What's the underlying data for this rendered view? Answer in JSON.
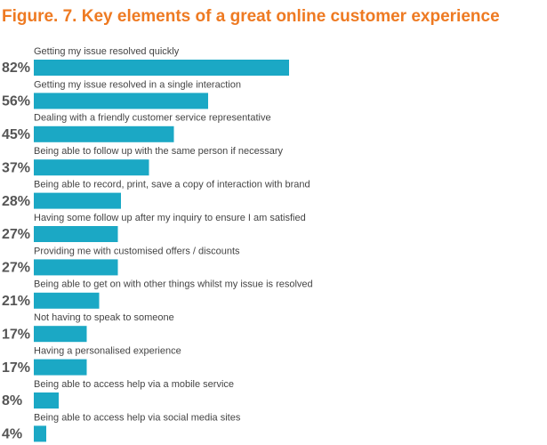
{
  "chart_data": {
    "type": "bar",
    "orientation": "horizontal",
    "title": "Figure. 7. Key elements of a great online customer experience",
    "categories": [
      "Getting my issue resolved quickly",
      "Getting my issue resolved in a single interaction",
      "Dealing with a friendly customer service representative",
      "Being able to follow up with the same person if necessary",
      "Being able to record, print, save a copy of interaction with brand",
      "Having some follow up after my inquiry to ensure I am satisfied",
      "Providing me with customised offers / discounts",
      "Being able to get on with other things whilst my issue is resolved",
      "Not having to speak to someone",
      "Having a personalised experience",
      "Being able to access help via a mobile service",
      "Being able to access help via social media sites"
    ],
    "values": [
      82,
      56,
      45,
      37,
      28,
      27,
      27,
      21,
      17,
      17,
      8,
      4
    ],
    "value_labels": [
      "82%",
      "56%",
      "45%",
      "37%",
      "28%",
      "27%",
      "27%",
      "21%",
      "17%",
      "17%",
      "8%",
      "4%"
    ],
    "color": "#1ba8c5",
    "title_color": "#ee7a22"
  }
}
